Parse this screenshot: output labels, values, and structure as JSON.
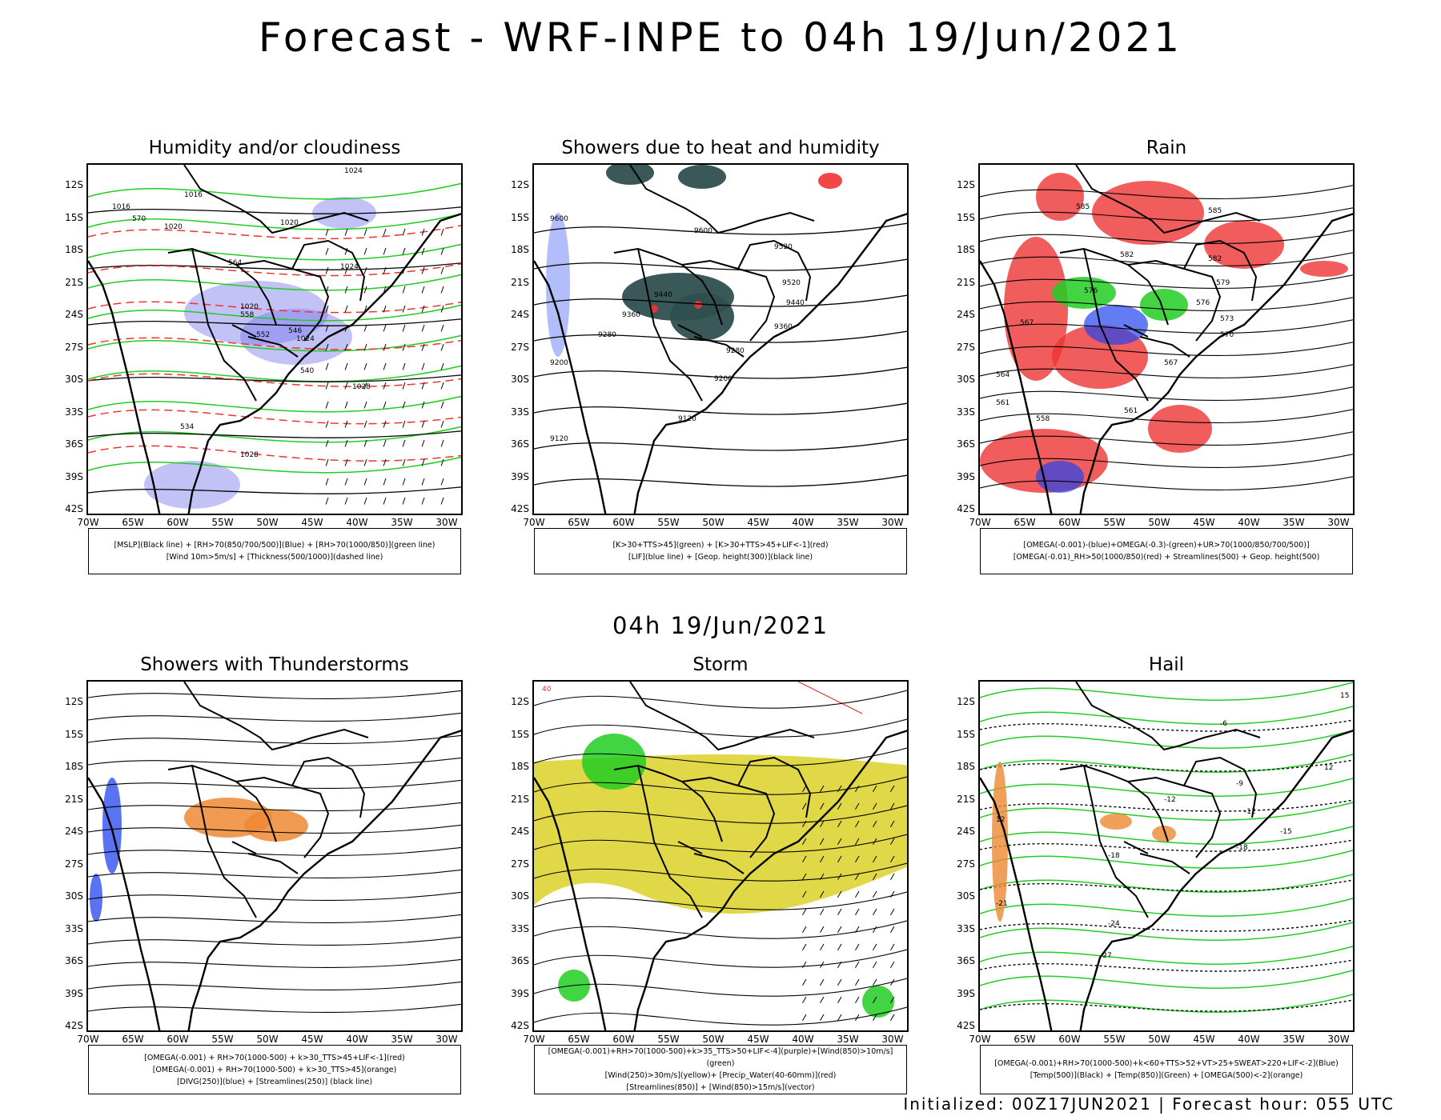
{
  "title": "Forecast - WRF-INPE to 04h 19/Jun/2021",
  "subtitle": "04h 19/Jun/2021",
  "footer": "Initialized: 00Z17JUN2021 | Forecast hour: 055 UTC",
  "lat_labels": [
    "12S",
    "15S",
    "18S",
    "21S",
    "24S",
    "27S",
    "30S",
    "33S",
    "36S",
    "39S",
    "42S"
  ],
  "lon_labels": [
    "70W",
    "65W",
    "60W",
    "55W",
    "50W",
    "45W",
    "40W",
    "35W",
    "30W"
  ],
  "colors": {
    "black": "#000000",
    "green": "#22cc22",
    "red": "#ee3333",
    "blue": "#2244ee",
    "purple": "#7777ee",
    "orange": "#ee8833",
    "yellow": "#ddd433",
    "darkteal": "#2f4f4f"
  },
  "panels": [
    {
      "title": "Humidity and/or cloudiness",
      "legend": [
        "[MSLP](Black line) + [RH>70(850/700/500)](Blue) + [RH>70(1000/850)](green line)",
        "[Wind 10m>5m/s] + [Thickness(500/1000)](dashed line)"
      ],
      "labels": [
        "1016",
        "1016",
        "1020",
        "1020",
        "1020",
        "1024",
        "1024",
        "1024",
        "1028",
        "1028",
        "570",
        "564",
        "558",
        "552",
        "546",
        "540",
        "534"
      ]
    },
    {
      "title": "Showers due to heat and humidity",
      "legend": [
        "[K>30+TTS>45](green) + [K>30+TTS>45+LIF<-1](red)",
        "[LIF](blue line) + [Geop. height(300)](black line)"
      ],
      "labels": [
        "9600",
        "9600",
        "9520",
        "9520",
        "9440",
        "9440",
        "9360",
        "9360",
        "9280",
        "9280",
        "9200",
        "9200",
        "9120",
        "9120"
      ]
    },
    {
      "title": "Rain",
      "legend": [
        "[OMEGA(-0.001)-(blue)+OMEGA(-0.3)-(green)+UR>70(1000/850/700/500)]",
        "[OMEGA(-0.01)_RH>50(1000/850)(red) + Streamlines(500) + Geop. height(500)"
      ],
      "labels": [
        "585",
        "585",
        "582",
        "582",
        "579",
        "576",
        "576",
        "573",
        "570",
        "567",
        "567",
        "564",
        "561",
        "561",
        "558"
      ]
    },
    {
      "title": "Showers with Thunderstorms",
      "legend": [
        "[OMEGA(-0.001) + RH>70(1000-500) + k>30_TTS>45+LIF<-1](red)",
        "[OMEGA(-0.001) + RH>70(1000-500) + k>30_TTS>45](orange)",
        "[DIVG(250)](blue) + [Streamlines(250)] (black line)"
      ],
      "labels": []
    },
    {
      "title": "Storm",
      "legend": [
        "[OMEGA(-0.001)+RH>70(1000-500)+k>35_TTS>50+LIF<-4](purple)+[Wind(850)>10m/s](green)",
        "[Wind(250)>30m/s](yellow)+ [Precip_Water(40-60mm)](red)",
        "[Streamlines(850)] + [Wind(850)>15m/s](vector)"
      ],
      "labels": [
        "40"
      ]
    },
    {
      "title": "Hail",
      "legend": [
        "[OMEGA(-0.001)+RH>70(1000-500)+k<60+TTS>52+VT>25+SWEAT>220+LIF<-2](Blue)",
        "[Temp(500)](Black) + [Temp(850)](Green) + [OMEGA(500)<-2](orange)"
      ],
      "labels": [
        "-6",
        "-9",
        "-12",
        "-12",
        "-15",
        "-18",
        "-18",
        "-21",
        "-24",
        "-27",
        "15",
        "12",
        "12"
      ]
    }
  ]
}
